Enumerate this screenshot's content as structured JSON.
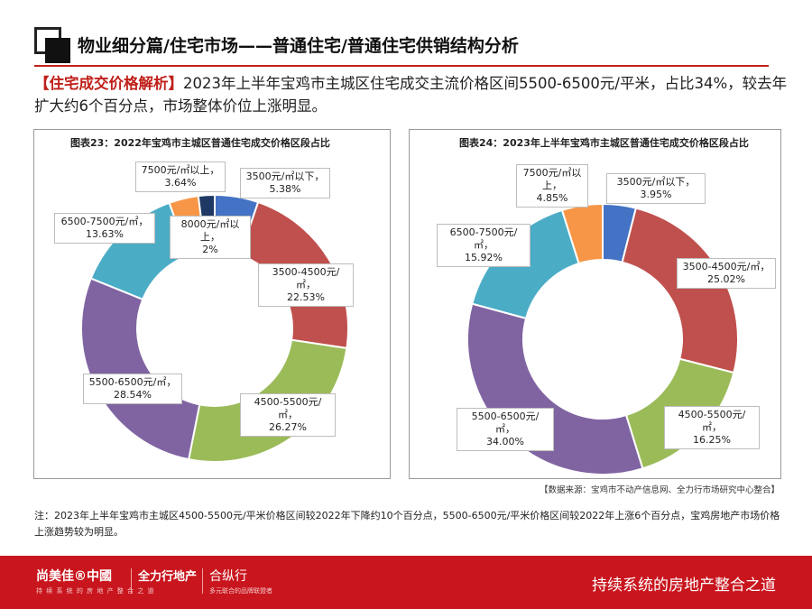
{
  "header": {
    "title": "物业细分篇/住宅市场——普通住宅/普通住宅供销结构分析"
  },
  "intro": {
    "tag": "【住宅成交价格解析】",
    "text": "2023年上半年宝鸡市主城区住宅成交主流价格区间5500-6500元/平米，占比34%，较去年扩大约6个百分点，市场整体价位上涨明显。"
  },
  "chart_data": [
    {
      "type": "pie",
      "donut": true,
      "title": "图表23：2022年宝鸡市主城区普通住宅成交价格区段占比",
      "slices": [
        {
          "label": "3500元/㎡以下",
          "value": 5.38,
          "display": "5.38%",
          "color": "#4472c4"
        },
        {
          "label": "3500-4500元/㎡",
          "value": 22.53,
          "display": "22.53%",
          "color": "#c0504d"
        },
        {
          "label": "4500-5500元/㎡",
          "value": 26.27,
          "display": "26.27%",
          "color": "#9bbb59"
        },
        {
          "label": "5500-6500元/㎡",
          "value": 28.54,
          "display": "28.54%",
          "color": "#8064a2"
        },
        {
          "label": "6500-7500元/㎡",
          "value": 13.63,
          "display": "13.63%",
          "color": "#4bacc6"
        },
        {
          "label": "7500元/㎡以上",
          "value": 3.64,
          "display": "3.64%",
          "color": "#f79646"
        },
        {
          "label": "8000元/㎡以上",
          "value": 2,
          "display": "2%",
          "color": "#1f3864"
        }
      ],
      "legend": "none"
    },
    {
      "type": "pie",
      "donut": true,
      "title": "图表24：2023年上半年宝鸡市主城区普通住宅成交价格区段占比",
      "slices": [
        {
          "label": "3500元/㎡以下",
          "value": 3.95,
          "display": "3.95%",
          "color": "#4472c4"
        },
        {
          "label": "3500-4500元/㎡",
          "value": 25.02,
          "display": "25.02%",
          "color": "#c0504d"
        },
        {
          "label": "4500-5500元/㎡",
          "value": 16.25,
          "display": "16.25%",
          "color": "#9bbb59"
        },
        {
          "label": "5500-6500元/㎡",
          "value": 34.0,
          "display": "34.00%",
          "color": "#8064a2"
        },
        {
          "label": "6500-7500元/㎡",
          "value": 15.92,
          "display": "15.92%",
          "color": "#4bacc6"
        },
        {
          "label": "7500元/㎡以上",
          "value": 4.85,
          "display": "4.85%",
          "color": "#f79646"
        }
      ],
      "legend": "none"
    }
  ],
  "source": "【数据来源：宝鸡市不动产信息网、全力行市场研究中心整合】",
  "note": "注：2023年上半年宝鸡市主城区4500-5500元/平米价格区间较2022年下降约10个百分点，5500-6500元/平米价格区间较2022年上涨6个百分点，宝鸡房地产市场价格上涨趋势较为明显。",
  "footer": {
    "brand_left": "尚美佳®中國",
    "brand_left_sub": "持 续 系 统 的 房 地 产 整 合 之 道",
    "brand_mid": "全力行地产",
    "brand_right": "合纵行",
    "brand_right_sub": "多元联合的品牌联盟者",
    "slogan": "持续系统的房地产整合之道"
  },
  "colors": {
    "accent": "#c0201a",
    "footer_bg": "#c9161e"
  }
}
